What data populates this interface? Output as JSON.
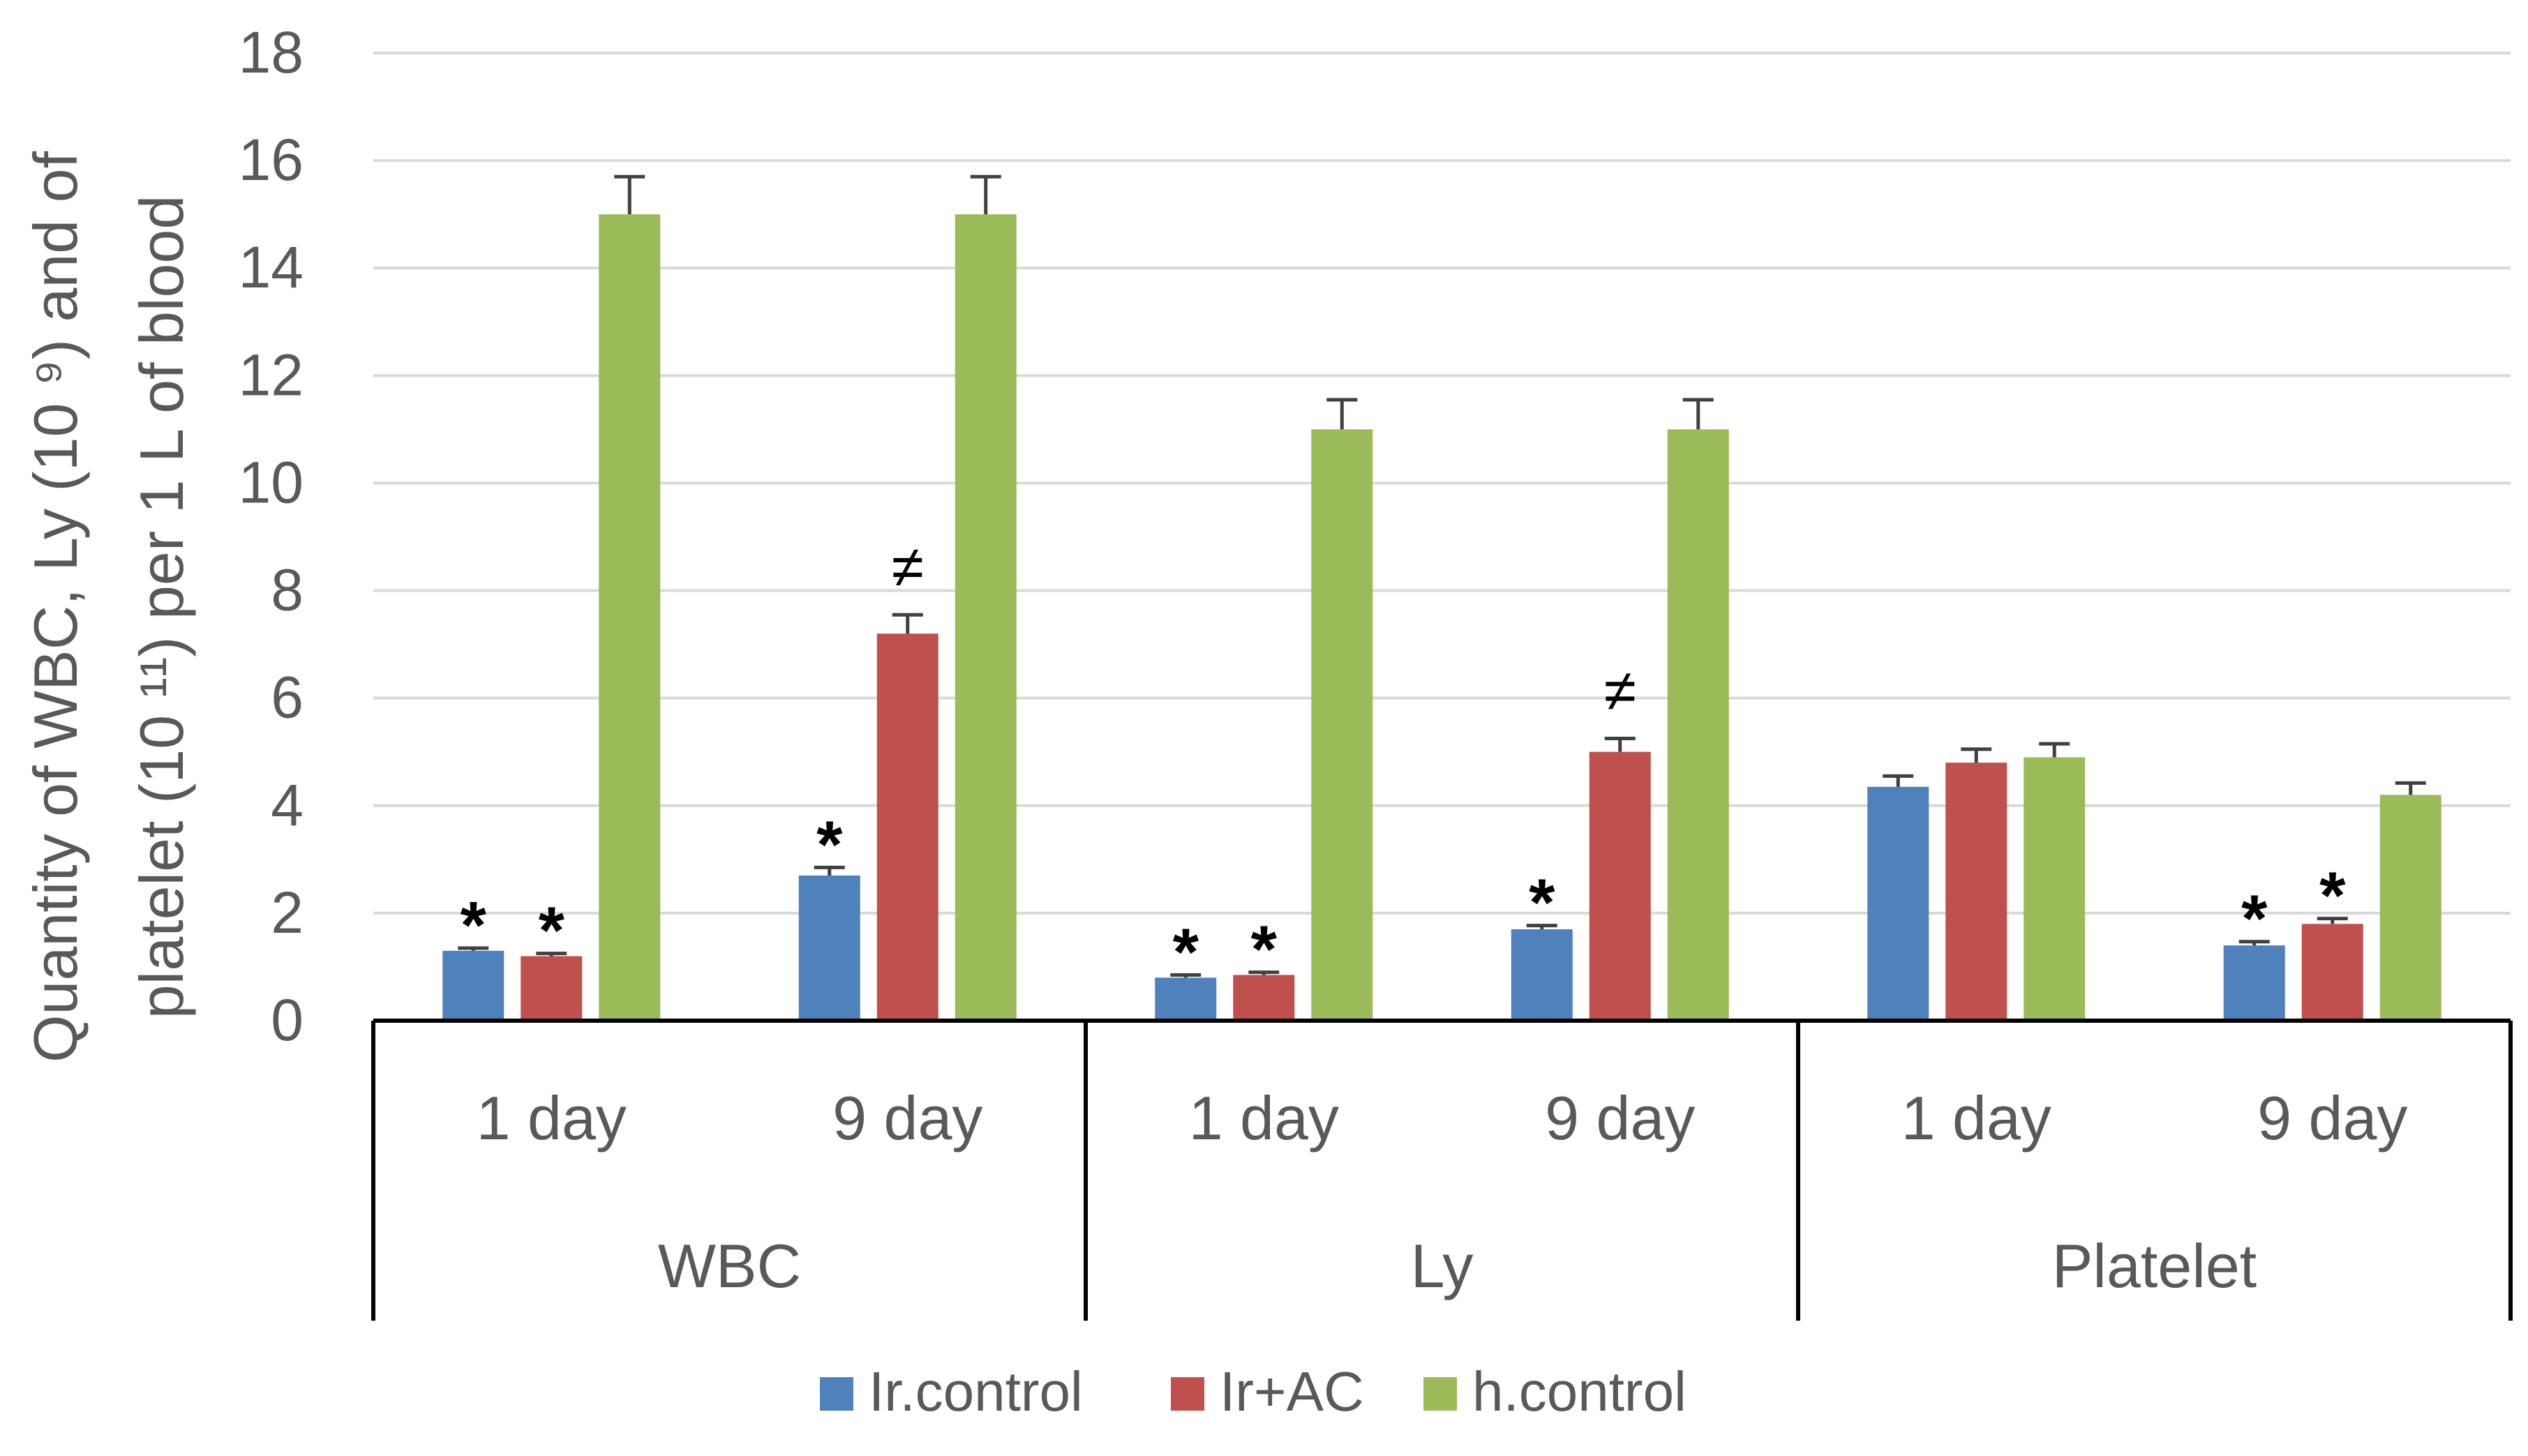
{
  "colors": {
    "ir_control": "#4F81BD",
    "ir_ac": "#C0504D",
    "h_control": "#9BBB59",
    "grid": "#D9D9D9",
    "text": "#595959",
    "axis": "#000000"
  },
  "chart_data": {
    "type": "bar",
    "title": "",
    "ylabel_line1": "Quantity of WBC, Ly (10 ⁹) and of",
    "ylabel_line2": "platelet (10 ¹¹) per  1 L of blood",
    "ylim": [
      0,
      18
    ],
    "yticks": [
      0,
      2,
      4,
      6,
      8,
      10,
      12,
      14,
      16,
      18
    ],
    "grid": true,
    "legend_position": "bottom",
    "groups": [
      {
        "name": "WBC",
        "subgroups": [
          "1 day",
          "9 day"
        ]
      },
      {
        "name": "Ly",
        "subgroups": [
          "1 day",
          "9 day"
        ]
      },
      {
        "name": "Platelet",
        "subgroups": [
          "1 day",
          "9 day"
        ]
      }
    ],
    "categories": [
      "WBC 1 day",
      "WBC 9 day",
      "Ly 1 day",
      "Ly 9 day",
      "Platelet 1 day",
      "Platelet 9 day"
    ],
    "series": [
      {
        "name": "Ir.control",
        "color_key": "ir_control",
        "values": [
          1.3,
          2.7,
          0.8,
          1.7,
          4.35,
          1.4
        ],
        "errors": [
          0.05,
          0.15,
          0.05,
          0.07,
          0.2,
          0.07
        ],
        "annotations": [
          "*",
          "*",
          "*",
          "*",
          "",
          "*"
        ]
      },
      {
        "name": "Ir+AC",
        "color_key": "ir_ac",
        "values": [
          1.2,
          7.2,
          0.85,
          5.0,
          4.8,
          1.8
        ],
        "errors": [
          0.05,
          0.35,
          0.05,
          0.25,
          0.25,
          0.1
        ],
        "annotations": [
          "*",
          "≠",
          "*",
          "≠",
          "",
          "*"
        ]
      },
      {
        "name": "h.control",
        "color_key": "h_control",
        "values": [
          15.0,
          15.0,
          11.0,
          11.0,
          4.9,
          4.2
        ],
        "errors": [
          0.7,
          0.7,
          0.55,
          0.55,
          0.25,
          0.22
        ],
        "annotations": [
          "",
          "",
          "",
          "",
          "",
          ""
        ]
      }
    ]
  }
}
